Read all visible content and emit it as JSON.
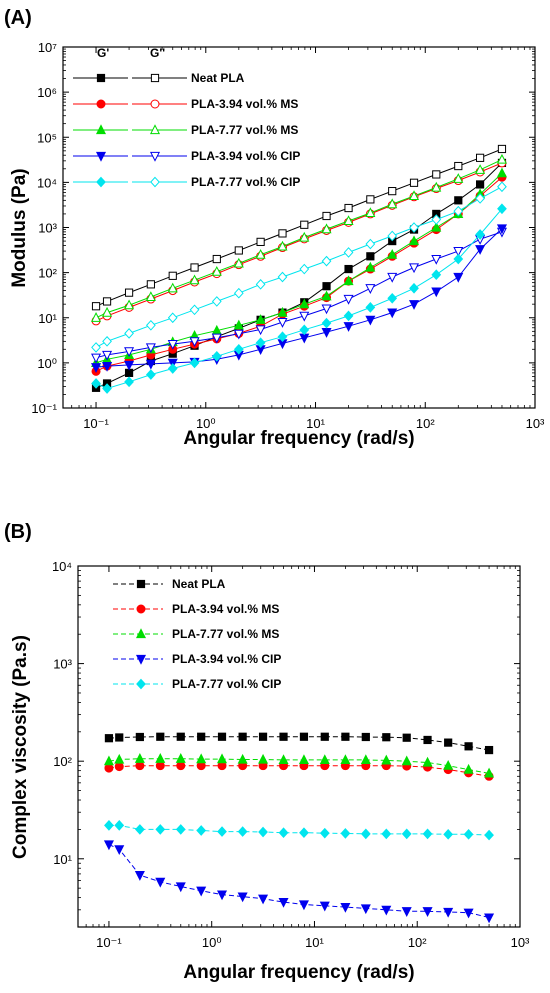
{
  "chart_data": [
    {
      "panel": "(A)",
      "type": "line",
      "xlabel": "Angular frequency (rad/s)",
      "ylabel": "Modulus (Pa)",
      "x_scale": "log",
      "y_scale": "log",
      "xlim": [
        0.05,
        1000
      ],
      "ylim": [
        0.1,
        10000000
      ],
      "x_ticks": [
        0.1,
        1,
        10,
        100,
        1000
      ],
      "x_tick_labels": [
        "10⁻¹",
        "10⁰",
        "10¹",
        "10²",
        "10³"
      ],
      "y_ticks": [
        0.1,
        1,
        10,
        100,
        1000,
        10000,
        100000,
        1000000,
        10000000
      ],
      "y_tick_labels": [
        "10⁻¹",
        "10⁰",
        "10¹",
        "10²",
        "10³",
        "10⁴",
        "10⁵",
        "10⁶",
        "10⁷"
      ],
      "grid": false,
      "legend_placement": "top-left",
      "legend_headers": [
        "G'",
        "G''"
      ],
      "x": [
        0.1,
        0.126,
        0.2,
        0.316,
        0.5,
        0.79,
        1.26,
        2,
        3.16,
        5,
        7.9,
        12.6,
        20,
        31.6,
        50,
        79,
        126,
        200,
        316,
        500
      ],
      "series": [
        {
          "name": "Neat PLA",
          "color": "#000000",
          "Gp": [
            0.28,
            0.35,
            0.6,
            1.1,
            1.6,
            2.4,
            3.8,
            5.8,
            9,
            13,
            22,
            50,
            120,
            230,
            500,
            900,
            2000,
            4000,
            9000,
            27000
          ],
          "Gpp": [
            18,
            23,
            36,
            55,
            85,
            130,
            200,
            310,
            480,
            740,
            1150,
            1800,
            2700,
            4200,
            6400,
            9800,
            15000,
            23000,
            35000,
            55000
          ]
        },
        {
          "name": "PLA-3.94 vol.% MS",
          "color": "#ff0000",
          "Gp": [
            0.65,
            0.85,
            1.1,
            1.5,
            2.0,
            2.6,
            3.4,
            4.5,
            6.5,
            12,
            18,
            28,
            65,
            120,
            230,
            450,
            900,
            2000,
            5000,
            13000
          ],
          "Gpp": [
            8.5,
            11,
            17,
            26,
            40,
            62,
            95,
            150,
            230,
            360,
            560,
            860,
            1300,
            2000,
            3100,
            4800,
            7300,
            11000,
            17000,
            27000
          ]
        },
        {
          "name": "PLA-7.77 vol.% MS",
          "color": "#00dd00",
          "Gp": [
            1.0,
            1.2,
            1.5,
            2.0,
            2.9,
            4.0,
            5.2,
            6.8,
            9,
            13,
            20,
            30,
            65,
            130,
            250,
            500,
            1000,
            2000,
            5500,
            16000
          ],
          "Gpp": [
            10,
            13,
            19,
            29,
            45,
            68,
            105,
            160,
            250,
            380,
            600,
            920,
            1400,
            2100,
            3300,
            5000,
            7700,
            12000,
            19000,
            32000
          ]
        },
        {
          "name": "PLA-3.94 vol.% CIP",
          "color": "#0000ee",
          "Gp": [
            0.8,
            0.85,
            0.9,
            0.95,
            1.0,
            1.05,
            1.2,
            1.5,
            2.0,
            2.7,
            3.6,
            4.8,
            6.5,
            9,
            13,
            20,
            38,
            80,
            330,
            950
          ],
          "Gpp": [
            1.3,
            1.5,
            1.8,
            2.2,
            2.6,
            3.0,
            3.6,
            4.4,
            5.5,
            8,
            11,
            16,
            26,
            45,
            80,
            130,
            200,
            300,
            550,
            800
          ]
        },
        {
          "name": "PLA-7.77 vol.% CIP",
          "color": "#00e5ee",
          "Gp": [
            0.35,
            0.27,
            0.38,
            0.55,
            0.75,
            1.0,
            1.4,
            2.0,
            2.8,
            3.8,
            5.4,
            7.6,
            11,
            17,
            27,
            45,
            90,
            200,
            700,
            2600
          ],
          "Gpp": [
            2.2,
            3.0,
            4.5,
            6.8,
            10,
            15,
            23,
            35,
            55,
            80,
            120,
            180,
            280,
            430,
            650,
            1000,
            1500,
            2300,
            4400,
            8000
          ]
        }
      ]
    },
    {
      "panel": "(B)",
      "type": "line",
      "xlabel": "Angular frequency (rad/s)",
      "ylabel": "Complex viscosity (Pa.s)",
      "x_scale": "log",
      "y_scale": "log",
      "xlim": [
        0.05,
        1000
      ],
      "ylim": [
        2,
        10000
      ],
      "x_ticks": [
        0.1,
        1,
        10,
        100,
        1000
      ],
      "x_tick_labels": [
        "10⁻¹",
        "10⁰",
        "10¹",
        "10²",
        "10³"
      ],
      "y_ticks": [
        10,
        100,
        1000,
        10000
      ],
      "y_tick_labels": [
        "10¹",
        "10²",
        "10³",
        "10⁴"
      ],
      "grid": false,
      "legend_placement": "top-left",
      "x": [
        0.1,
        0.126,
        0.2,
        0.316,
        0.5,
        0.79,
        1.26,
        2,
        3.16,
        5,
        7.9,
        12.6,
        20,
        31.6,
        50,
        79,
        126,
        200,
        316,
        500
      ],
      "series": [
        {
          "name": "Neat PLA",
          "color": "#000000",
          "marker": "square",
          "values": [
            172,
            175,
            177,
            178,
            178,
            178,
            178,
            178,
            178,
            178,
            178,
            178,
            178,
            177,
            176,
            174,
            165,
            155,
            142,
            130
          ]
        },
        {
          "name": "PLA-3.94 vol.% MS",
          "color": "#ff0000",
          "marker": "circle",
          "values": [
            85,
            88,
            90,
            90,
            90,
            90,
            90,
            90,
            90,
            90,
            90,
            90,
            90,
            90,
            90,
            89,
            87,
            82,
            76,
            70
          ]
        },
        {
          "name": "PLA-7.77 vol.% MS",
          "color": "#00dd00",
          "marker": "triangle-up",
          "values": [
            100,
            104,
            106,
            106,
            106,
            105,
            105,
            104,
            104,
            103,
            103,
            103,
            103,
            103,
            102,
            100,
            97,
            90,
            82,
            75
          ]
        },
        {
          "name": "PLA-3.94 vol.% CIP",
          "color": "#0000ee",
          "marker": "triangle-down",
          "values": [
            14,
            12.5,
            6.8,
            5.8,
            5.2,
            4.7,
            4.3,
            4.1,
            3.9,
            3.6,
            3.4,
            3.3,
            3.2,
            3.1,
            3.0,
            2.9,
            2.9,
            2.85,
            2.8,
            2.5
          ]
        },
        {
          "name": "PLA-7.77 vol.% CIP",
          "color": "#00e5ee",
          "marker": "diamond",
          "values": [
            22,
            22,
            20,
            20,
            20,
            19.5,
            19,
            19,
            18.8,
            18.5,
            18.5,
            18.3,
            18.2,
            18,
            18,
            18,
            18,
            17.8,
            17.8,
            17.5
          ]
        }
      ]
    }
  ]
}
